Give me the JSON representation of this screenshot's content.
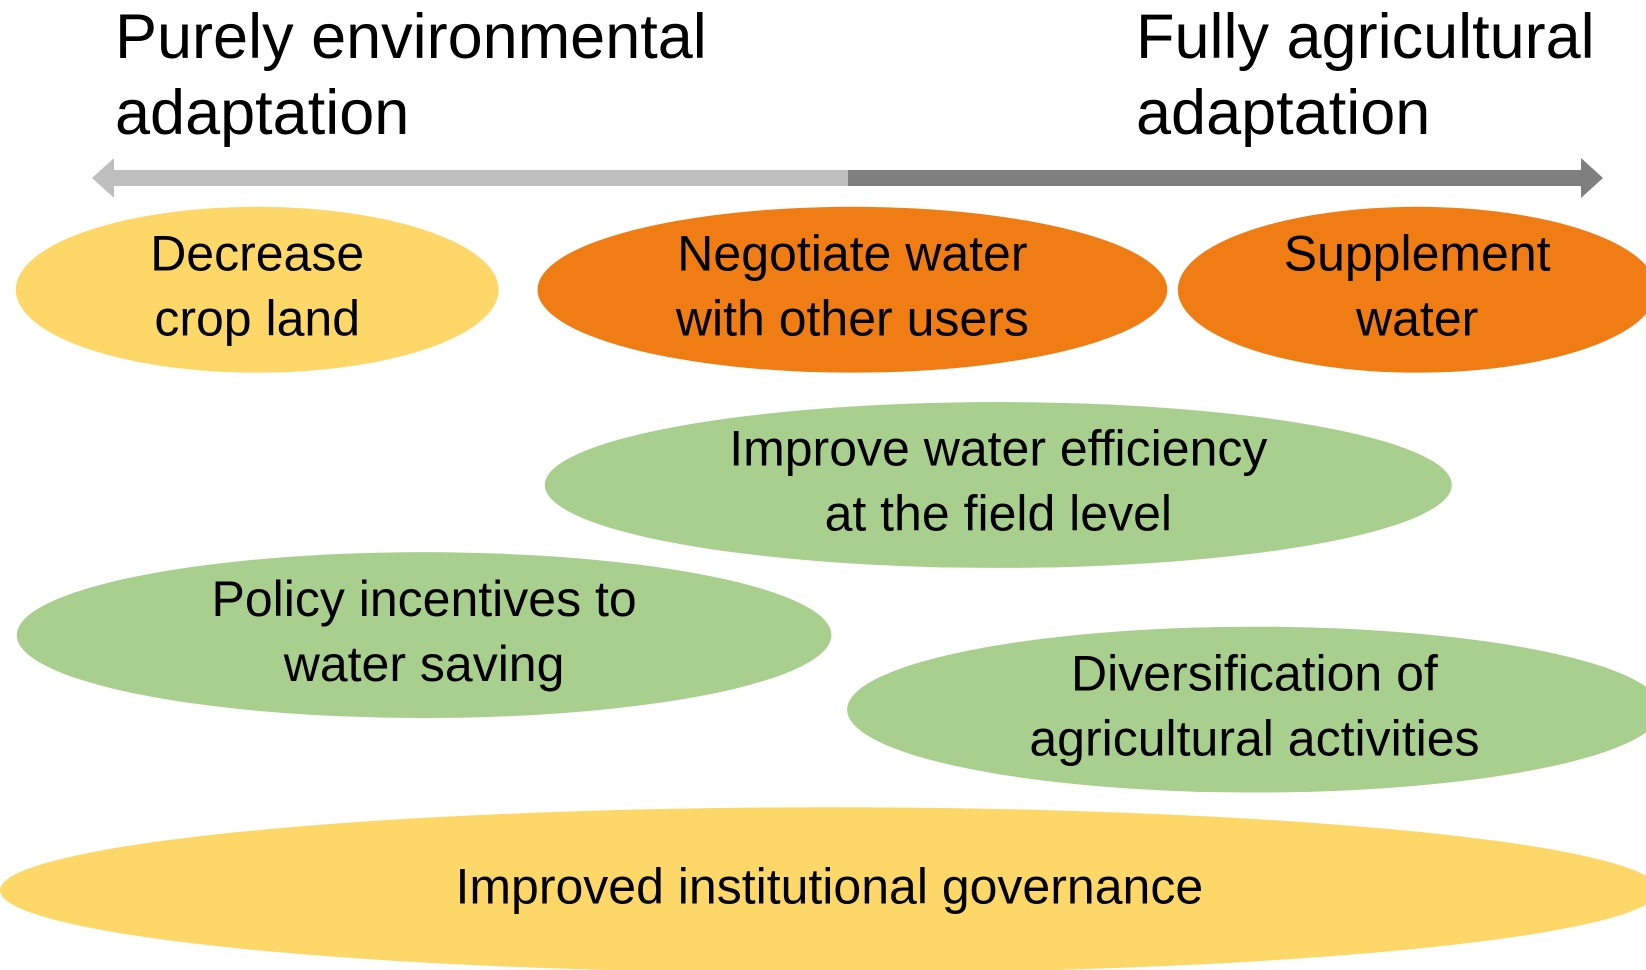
{
  "ends": {
    "left": [
      "Purely environmental",
      "adaptation"
    ],
    "right": [
      "Fully agricultural",
      "adaptation"
    ]
  },
  "nodes": [
    {
      "lines": [
        "Decrease",
        "crop land"
      ],
      "color": "#fdd868"
    },
    {
      "lines": [
        "Negotiate water",
        "with other users"
      ],
      "color": "#f07c14"
    },
    {
      "lines": [
        "Supplement",
        "water"
      ],
      "color": "#f07c14"
    },
    {
      "lines": [
        "Improve water efficiency",
        "at the field level"
      ],
      "color": "#a9cf8e"
    },
    {
      "lines": [
        "Policy incentives to",
        "water saving"
      ],
      "color": "#a9cf8e"
    },
    {
      "lines": [
        "Diversification of",
        "agricultural activities"
      ],
      "color": "#a9cf8e"
    },
    {
      "lines": [
        "Improved institutional governance"
      ],
      "color": "#fdd868"
    }
  ]
}
